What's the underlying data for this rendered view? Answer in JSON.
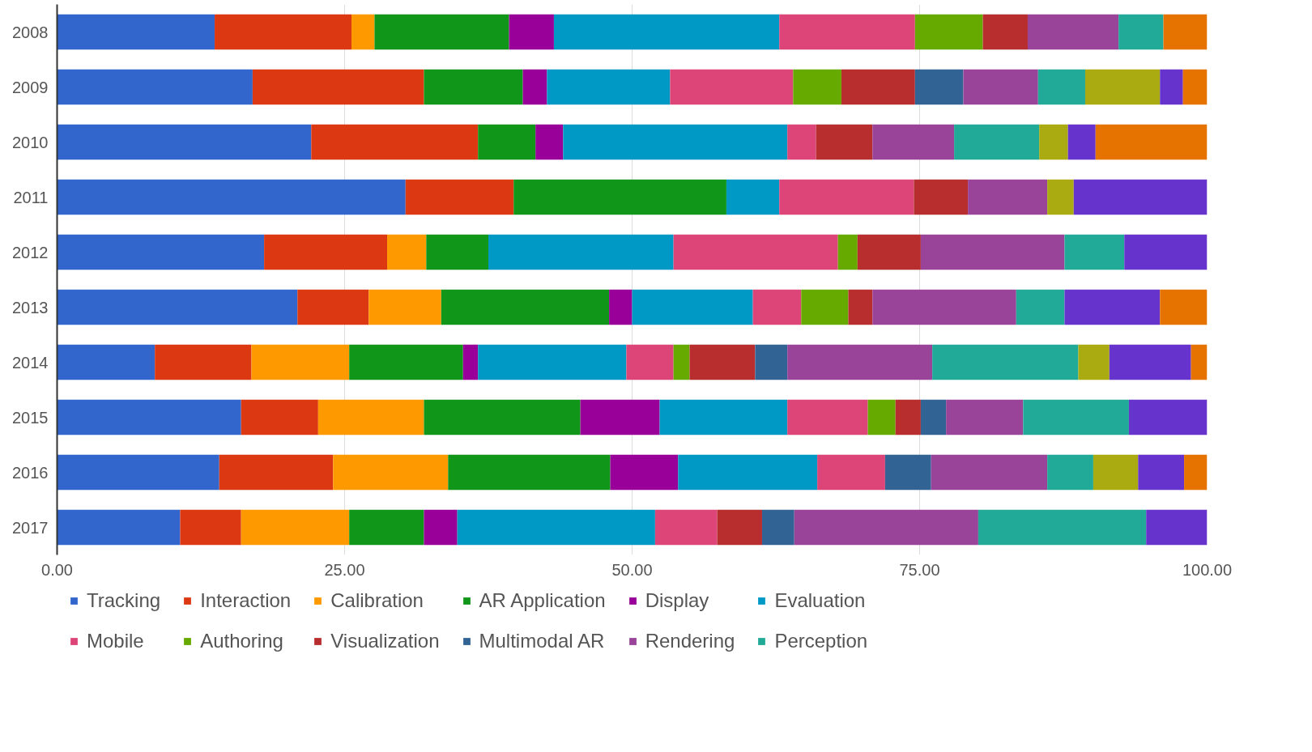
{
  "chart_data": {
    "type": "bar",
    "orientation": "horizontal",
    "stacked": true,
    "categories": [
      "2008",
      "2009",
      "2010",
      "2011",
      "2012",
      "2013",
      "2014",
      "2015",
      "2016",
      "2017"
    ],
    "xlim": [
      0,
      100
    ],
    "xticks": [
      {
        "value": 0,
        "label": "0.00"
      },
      {
        "value": 25,
        "label": "25.00"
      },
      {
        "value": 50,
        "label": "50.00"
      },
      {
        "value": 75,
        "label": "75.00"
      },
      {
        "value": 100,
        "label": "100.00"
      }
    ],
    "grid": "x",
    "legend": "bottom",
    "series": [
      {
        "name": "Tracking",
        "color": "#3366cc",
        "values": [
          13.7,
          17.0,
          22.1,
          30.3,
          18.0,
          20.9,
          8.5,
          16.0,
          14.1,
          10.7
        ]
      },
      {
        "name": "Interaction",
        "color": "#dc3912",
        "values": [
          11.9,
          14.9,
          14.5,
          9.4,
          10.7,
          6.2,
          8.4,
          6.7,
          9.9,
          5.3
        ]
      },
      {
        "name": "Calibration",
        "color": "#ff9900",
        "values": [
          2.0,
          null,
          null,
          null,
          3.4,
          6.3,
          8.5,
          9.2,
          10.0,
          9.4
        ]
      },
      {
        "name": "AR Application",
        "color": "#109618",
        "values": [
          11.7,
          8.6,
          5.0,
          18.5,
          5.4,
          14.6,
          9.9,
          13.6,
          14.1,
          6.5
        ]
      },
      {
        "name": "Display",
        "color": "#990099",
        "values": [
          3.9,
          2.1,
          2.4,
          null,
          null,
          2.0,
          1.3,
          6.9,
          5.9,
          2.9
        ]
      },
      {
        "name": "Evaluation",
        "color": "#0099c6",
        "values": [
          19.6,
          10.7,
          19.5,
          4.6,
          16.1,
          10.5,
          12.9,
          11.1,
          12.1,
          17.2
        ]
      },
      {
        "name": "Mobile",
        "color": "#dd4477",
        "values": [
          11.8,
          10.7,
          2.5,
          11.7,
          14.3,
          4.2,
          4.1,
          7.0,
          5.9,
          5.4
        ]
      },
      {
        "name": "Authoring",
        "color": "#66aa00",
        "values": [
          5.9,
          4.2,
          null,
          null,
          1.7,
          4.1,
          1.4,
          2.4,
          null,
          null
        ]
      },
      {
        "name": "Visualization",
        "color": "#b82e2e",
        "values": [
          3.9,
          6.4,
          4.9,
          4.7,
          5.5,
          2.1,
          5.7,
          2.2,
          null,
          3.9
        ]
      },
      {
        "name": "Multimodal AR",
        "color": "#316395",
        "values": [
          null,
          4.2,
          null,
          null,
          null,
          null,
          2.8,
          2.2,
          4.0,
          2.8
        ]
      },
      {
        "name": "Rendering",
        "color": "#994499",
        "values": [
          7.9,
          6.5,
          7.1,
          6.9,
          12.5,
          12.5,
          12.6,
          6.7,
          10.1,
          16.0
        ]
      },
      {
        "name": "Perception",
        "color": "#22aa99",
        "values": [
          3.9,
          4.1,
          7.4,
          null,
          5.2,
          4.2,
          12.7,
          9.2,
          4.0,
          14.6
        ]
      },
      {
        "color": "#aaaa11",
        "values": [
          null,
          6.5,
          2.5,
          2.3,
          null,
          null,
          2.7,
          null,
          3.9,
          null
        ]
      },
      {
        "color": "#6633cc",
        "values": [
          null,
          2.0,
          2.4,
          11.6,
          7.2,
          8.3,
          7.1,
          6.8,
          4.0,
          5.3
        ]
      },
      {
        "color": "#e67300",
        "values": [
          3.8,
          2.1,
          9.7,
          null,
          null,
          4.1,
          1.4,
          null,
          2.0,
          null
        ]
      }
    ]
  }
}
